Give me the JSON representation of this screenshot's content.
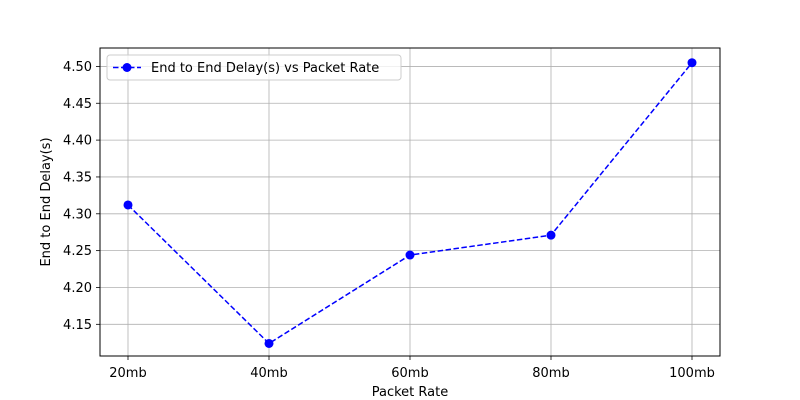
{
  "chart_data": {
    "type": "line",
    "categories": [
      "20mb",
      "40mb",
      "60mb",
      "80mb",
      "100mb"
    ],
    "series": [
      {
        "name": "End to End Delay(s) vs Packet Rate",
        "values": [
          4.312,
          4.124,
          4.244,
          4.271,
          4.505
        ],
        "color": "#0000ff",
        "line_style": "dashed",
        "marker": "circle"
      }
    ],
    "title": "",
    "xlabel": "Packet Rate",
    "ylabel": "End to End Delay(s)",
    "ylim": [
      4.107,
      4.525
    ],
    "yticks": [
      "4.15",
      "4.20",
      "4.25",
      "4.30",
      "4.35",
      "4.40",
      "4.45",
      "4.50"
    ],
    "grid": true,
    "legend_position": "top-left"
  }
}
